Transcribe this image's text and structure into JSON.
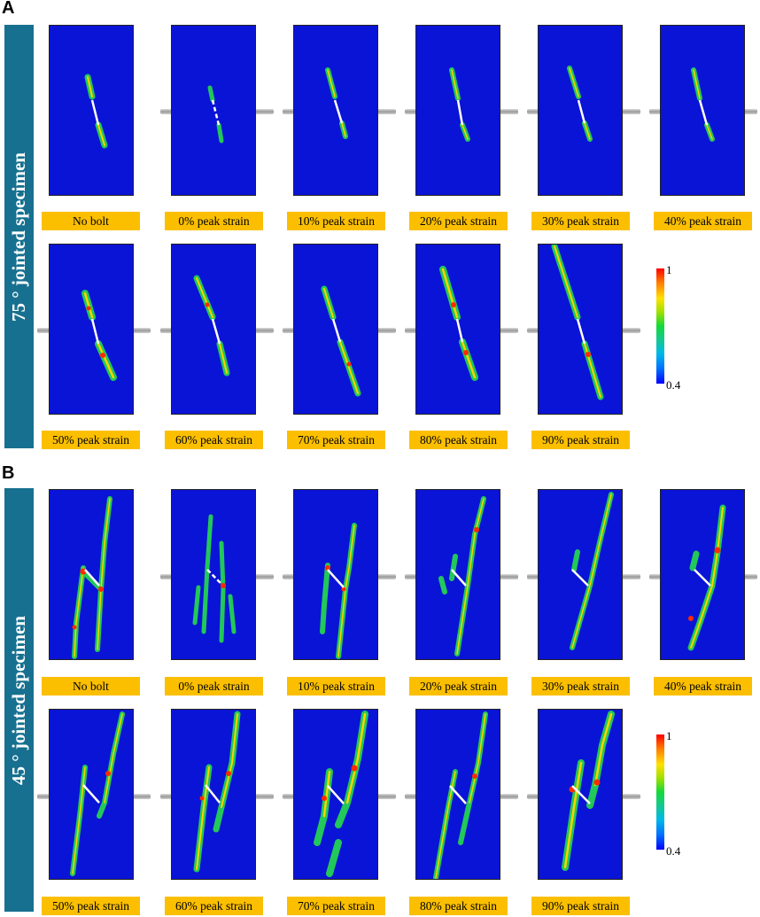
{
  "panels": [
    {
      "letter": "A",
      "title": "75 ° jointed specimen",
      "labels": [
        "No bolt",
        "0% peak strain",
        "10% peak strain",
        "20% peak strain",
        "30% peak strain",
        "40% peak strain",
        "50% peak strain",
        "60% peak strain",
        "70% peak strain",
        "80% peak strain",
        "90% peak strain"
      ],
      "colorbar": {
        "max_label": "1",
        "min_label": "0.4"
      }
    },
    {
      "letter": "B",
      "title": "45 ° jointed specimen",
      "labels": [
        "No bolt",
        "0% peak strain",
        "10% peak strain",
        "20% peak strain",
        "30% peak strain",
        "40% peak strain",
        "50% peak strain",
        "60% peak strain",
        "70% peak strain",
        "80% peak strain",
        "90% peak strain"
      ],
      "colorbar": {
        "max_label": "1",
        "min_label": "0.4"
      }
    }
  ],
  "colors": {
    "background": "#0a14d6",
    "label": "#fbbf00",
    "side_bar": "#17708f",
    "crack_outer": "#22c85a",
    "crack_inner": "#ffd200",
    "crack_hot": "#ff2a00"
  }
}
